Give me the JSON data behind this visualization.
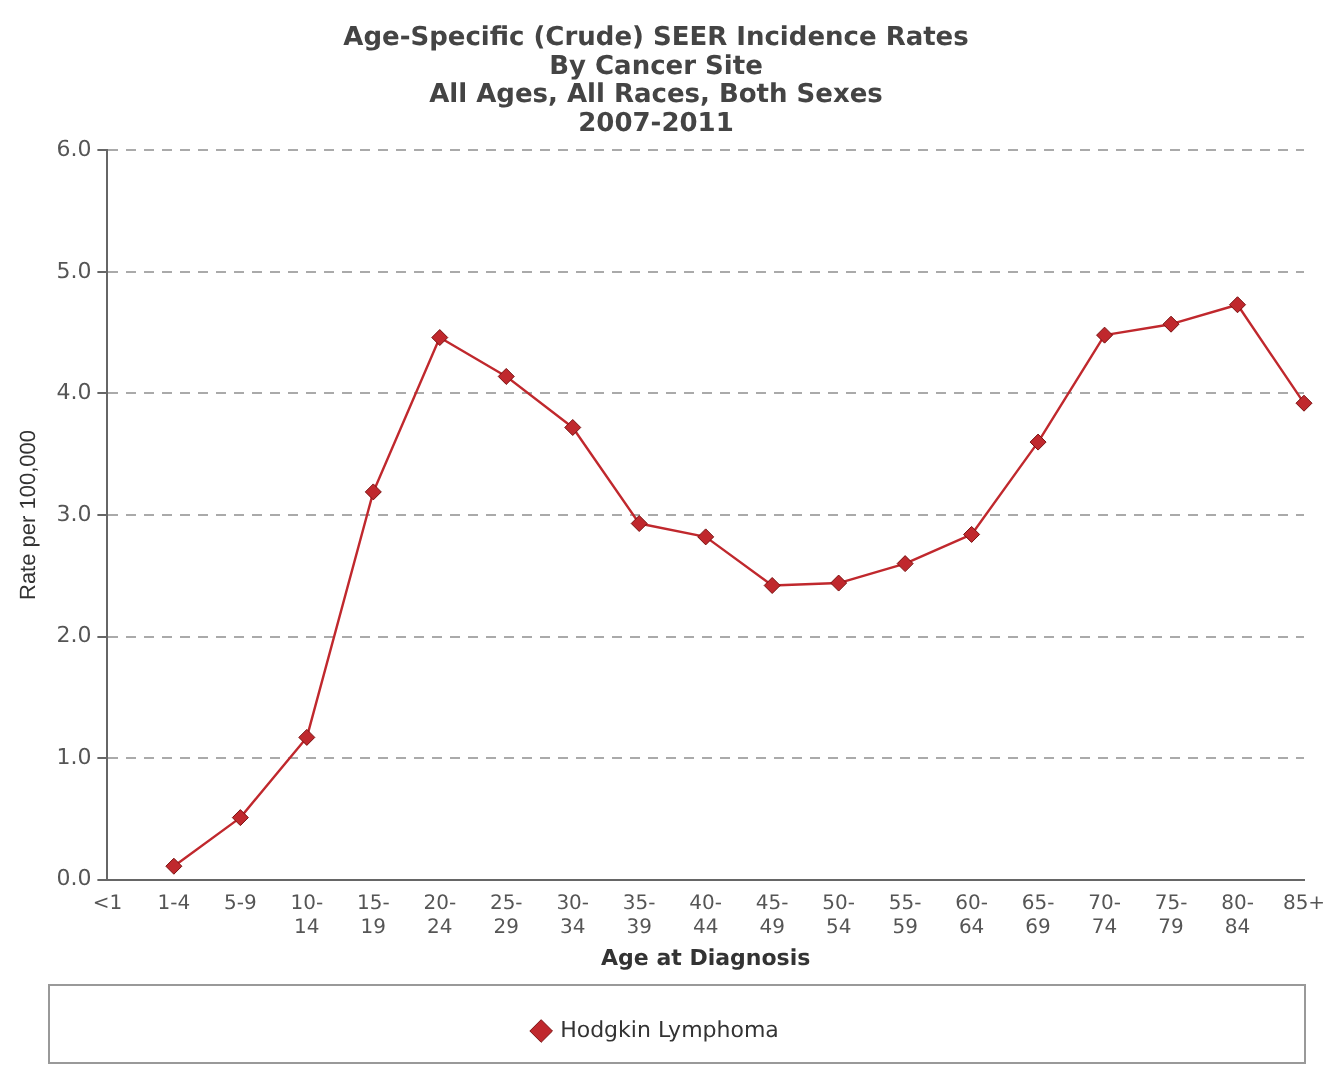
{
  "chart_data": {
    "type": "line",
    "title": "Age-Specific (Crude) SEER Incidence Rates\nBy Cancer Site\nAll Ages, All Races, Both Sexes\n2007-2011",
    "xlabel": "Age at Diagnosis",
    "ylabel": "Rate per 100,000",
    "categories": [
      "<1",
      "1-4",
      "5-9",
      "10-14",
      "15-19",
      "20-24",
      "25-29",
      "30-34",
      "35-39",
      "40-44",
      "45-49",
      "50-54",
      "55-59",
      "60-64",
      "65-69",
      "70-74",
      "75-79",
      "80-84",
      "85+"
    ],
    "series": [
      {
        "name": "Hodgkin Lymphoma",
        "color": "#c0282d",
        "values": [
          null,
          0.11,
          0.51,
          1.17,
          3.19,
          4.46,
          4.14,
          3.72,
          2.93,
          2.82,
          2.42,
          2.44,
          2.6,
          2.84,
          3.6,
          4.48,
          4.57,
          4.73,
          3.92
        ]
      }
    ],
    "ylim": [
      0,
      6
    ],
    "yticks": [
      {
        "value": 0,
        "label": "0.0"
      },
      {
        "value": 1,
        "label": "1.0"
      },
      {
        "value": 2,
        "label": "2.0"
      },
      {
        "value": 3,
        "label": "3.0"
      },
      {
        "value": 4,
        "label": "4.0"
      },
      {
        "value": 5,
        "label": "5.0"
      },
      {
        "value": 6,
        "label": "6.0"
      }
    ],
    "grid": "y",
    "legend": "bottom",
    "marker": "diamond",
    "line_style": "solid"
  }
}
